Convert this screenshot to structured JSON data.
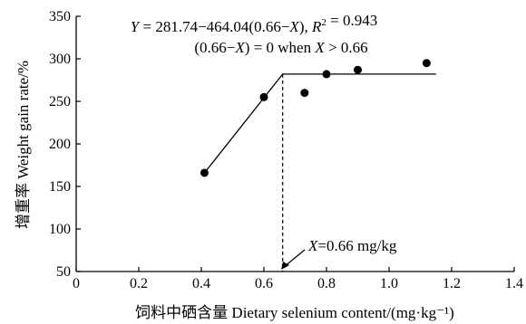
{
  "chart_data": {
    "type": "scatter",
    "xlabel": "饲料中硒含量 Dietary selenium content/(mg·kg⁻¹)",
    "ylabel": "增重率 Weight gain rate/%",
    "xlim": [
      0,
      1.4
    ],
    "ylim": [
      50,
      350
    ],
    "xticks": [
      0,
      0.2,
      0.4,
      0.6,
      0.8,
      1.0,
      1.2,
      1.4
    ],
    "yticks": [
      50,
      100,
      150,
      200,
      250,
      300,
      350
    ],
    "xtick_labels": [
      "0",
      "0.2",
      "0.4",
      "0.6",
      "0.8",
      "1.0",
      "1.2",
      "1.4"
    ],
    "ytick_labels": [
      "50",
      "100",
      "150",
      "200",
      "250",
      "300",
      "350"
    ],
    "grid": false,
    "points": [
      {
        "x": 0.41,
        "y": 166
      },
      {
        "x": 0.6,
        "y": 255
      },
      {
        "x": 0.73,
        "y": 260
      },
      {
        "x": 0.8,
        "y": 282
      },
      {
        "x": 0.9,
        "y": 287
      },
      {
        "x": 1.12,
        "y": 295
      }
    ],
    "fit_line": {
      "x": [
        0.41,
        0.66,
        1.15
      ],
      "y": [
        166,
        282,
        282
      ]
    },
    "breakpoint": {
      "x": 0.66,
      "y": 282,
      "y_from": 50
    },
    "annotations": {
      "equation_line1": "Y = 281.74−464.04(0.66−X), R² = 0.943",
      "equation_line2": "(0.66−X) = 0 when X > 0.66",
      "breakpoint_label": "X=0.66 mg/kg"
    }
  }
}
